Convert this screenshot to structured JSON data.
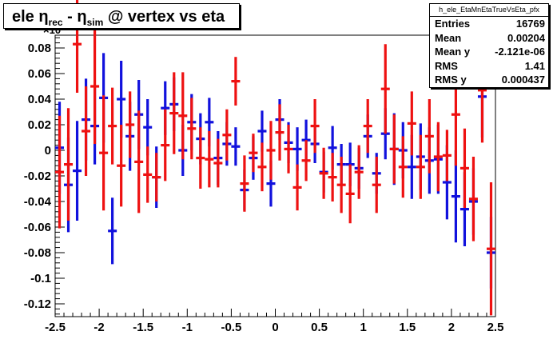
{
  "title": {
    "main_prefix": "ele ",
    "eta1": "η",
    "sub1": "rec",
    "dash": " - ",
    "eta2": "η",
    "sub2": "sim",
    "suffix": " @ vertex vs eta"
  },
  "stats": {
    "name": "h_ele_EtaMnEtaTrueVsEta_pfx",
    "rows": [
      {
        "label": "Entries",
        "value": "16769"
      },
      {
        "label": "Mean",
        "value": "0.00204"
      },
      {
        "label": "Mean y",
        "value": "-2.121e-06"
      },
      {
        "label": "RMS",
        "value": "1.41"
      },
      {
        "label": "RMS y",
        "value": "0.000437"
      }
    ]
  },
  "y_exponent_label": "×10",
  "chart_data": {
    "type": "scatter",
    "xlim": [
      -2.5,
      2.5
    ],
    "ylim": [
      -0.13,
      0.09
    ],
    "y_multiplier_label": "×10",
    "x_ticks": [
      "-2.5",
      "-2",
      "-1.5",
      "-1",
      "-0.5",
      "0",
      "0.5",
      "1",
      "1.5",
      "2",
      "2.5"
    ],
    "x_tick_values": [
      -2.5,
      -2,
      -1.5,
      -1,
      -0.5,
      0,
      0.5,
      1,
      1.5,
      2,
      2.5
    ],
    "y_ticks": [
      "0.08",
      "0.06",
      "0.04",
      "0.02",
      "0",
      "-0.02",
      "-0.04",
      "-0.06",
      "-0.08",
      "-0.1",
      "-0.12"
    ],
    "y_tick_values": [
      0.08,
      0.06,
      0.04,
      0.02,
      0,
      -0.02,
      -0.04,
      -0.06,
      -0.08,
      -0.1,
      -0.12
    ],
    "grid": false,
    "series": [
      {
        "color": "#1111dd",
        "points": [
          {
            "x": -2.45,
            "y": 0.002,
            "err": 0.036
          },
          {
            "x": -2.35,
            "y": -0.027,
            "err": 0.037
          },
          {
            "x": -2.25,
            "y": -0.016,
            "err": 0.039
          },
          {
            "x": -2.15,
            "y": 0.024,
            "err": 0.032
          },
          {
            "x": -2.05,
            "y": 0.019,
            "err": 0.03
          },
          {
            "x": -1.95,
            "y": 0.041,
            "err": 0.035
          },
          {
            "x": -1.85,
            "y": -0.063,
            "err": 0.026
          },
          {
            "x": -1.75,
            "y": 0.04,
            "err": 0.03
          },
          {
            "x": -1.65,
            "y": 0.011,
            "err": 0.027
          },
          {
            "x": -1.55,
            "y": 0.028,
            "err": 0.027
          },
          {
            "x": -1.45,
            "y": 0.018,
            "err": 0.022
          },
          {
            "x": -1.35,
            "y": -0.021,
            "err": 0.024
          },
          {
            "x": -1.25,
            "y": 0.033,
            "err": 0.021
          },
          {
            "x": -1.15,
            "y": 0.036,
            "err": 0.021
          },
          {
            "x": -1.05,
            "y": 0.0,
            "err": 0.02
          },
          {
            "x": -0.95,
            "y": 0.022,
            "err": 0.022
          },
          {
            "x": -0.85,
            "y": 0.009,
            "err": 0.02
          },
          {
            "x": -0.75,
            "y": 0.022,
            "err": 0.019
          },
          {
            "x": -0.65,
            "y": -0.006,
            "err": 0.021
          },
          {
            "x": -0.55,
            "y": 0.005,
            "err": 0.017
          },
          {
            "x": -0.45,
            "y": 0.003,
            "err": 0.015
          },
          {
            "x": -0.35,
            "y": -0.031,
            "err": 0.016
          },
          {
            "x": -0.25,
            "y": -0.006,
            "err": 0.017
          },
          {
            "x": -0.15,
            "y": 0.015,
            "err": 0.016
          },
          {
            "x": -0.05,
            "y": -0.026,
            "err": 0.018
          },
          {
            "x": 0.05,
            "y": 0.024,
            "err": 0.016
          },
          {
            "x": 0.15,
            "y": 0.006,
            "err": 0.016
          },
          {
            "x": 0.25,
            "y": 0.001,
            "err": 0.017
          },
          {
            "x": 0.35,
            "y": 0.008,
            "err": 0.016
          },
          {
            "x": 0.45,
            "y": 0.005,
            "err": 0.015
          },
          {
            "x": 0.55,
            "y": -0.017,
            "err": 0.016
          },
          {
            "x": 0.65,
            "y": 0.002,
            "err": 0.017
          },
          {
            "x": 0.75,
            "y": -0.011,
            "err": 0.016
          },
          {
            "x": 0.85,
            "y": -0.011,
            "err": 0.017
          },
          {
            "x": 0.95,
            "y": -0.014,
            "err": 0.016
          },
          {
            "x": 1.05,
            "y": 0.011,
            "err": 0.017
          },
          {
            "x": 1.15,
            "y": -0.018,
            "err": 0.016
          },
          {
            "x": 1.25,
            "y": 0.013,
            "err": 0.02
          },
          {
            "x": 1.35,
            "y": 0.001,
            "err": 0.028
          },
          {
            "x": 1.45,
            "y": 0.0,
            "err": 0.022
          },
          {
            "x": 1.55,
            "y": -0.013,
            "err": 0.025
          },
          {
            "x": 1.65,
            "y": -0.005,
            "err": 0.026
          },
          {
            "x": 1.75,
            "y": -0.008,
            "err": 0.026
          },
          {
            "x": 1.85,
            "y": -0.007,
            "err": 0.027
          },
          {
            "x": 1.95,
            "y": -0.025,
            "err": 0.029
          },
          {
            "x": 2.05,
            "y": -0.036,
            "err": 0.036
          },
          {
            "x": 2.15,
            "y": -0.046,
            "err": 0.029
          },
          {
            "x": 2.25,
            "y": -0.04,
            "err": 0.026
          },
          {
            "x": 2.35,
            "y": 0.042,
            "err": 0.032
          },
          {
            "x": 2.45,
            "y": -0.08,
            "err": 0.028
          }
        ]
      },
      {
        "color": "#ee1111",
        "points": [
          {
            "x": -2.45,
            "y": -0.017,
            "err": 0.044
          },
          {
            "x": -2.35,
            "y": -0.011,
            "err": 0.044
          },
          {
            "x": -2.25,
            "y": 0.083,
            "err": 0.038
          },
          {
            "x": -2.15,
            "y": 0.015,
            "err": 0.035
          },
          {
            "x": -2.05,
            "y": 0.05,
            "err": 0.045
          },
          {
            "x": -1.95,
            "y": -0.002,
            "err": 0.045
          },
          {
            "x": -1.85,
            "y": 0.019,
            "err": 0.03
          },
          {
            "x": -1.75,
            "y": -0.012,
            "err": 0.032
          },
          {
            "x": -1.65,
            "y": 0.02,
            "err": 0.026
          },
          {
            "x": -1.55,
            "y": -0.009,
            "err": 0.04
          },
          {
            "x": -1.45,
            "y": -0.019,
            "err": 0.022
          },
          {
            "x": -1.35,
            "y": -0.021,
            "err": 0.019
          },
          {
            "x": -1.25,
            "y": 0.004,
            "err": 0.028
          },
          {
            "x": -1.15,
            "y": 0.029,
            "err": 0.032
          },
          {
            "x": -1.05,
            "y": 0.027,
            "err": 0.034
          },
          {
            "x": -0.95,
            "y": 0.017,
            "err": 0.024
          },
          {
            "x": -0.85,
            "y": -0.006,
            "err": 0.024
          },
          {
            "x": -0.75,
            "y": -0.007,
            "err": 0.022
          },
          {
            "x": -0.65,
            "y": -0.01,
            "err": 0.019
          },
          {
            "x": -0.55,
            "y": 0.012,
            "err": 0.02
          },
          {
            "x": -0.45,
            "y": 0.054,
            "err": 0.019
          },
          {
            "x": -0.35,
            "y": -0.026,
            "err": 0.022
          },
          {
            "x": -0.25,
            "y": -0.002,
            "err": 0.015
          },
          {
            "x": -0.15,
            "y": -0.013,
            "err": 0.019
          },
          {
            "x": -0.05,
            "y": 0.0,
            "err": 0.023
          },
          {
            "x": 0.05,
            "y": 0.014,
            "err": 0.022
          },
          {
            "x": 0.15,
            "y": 0.001,
            "err": 0.019
          },
          {
            "x": 0.25,
            "y": -0.029,
            "err": 0.018
          },
          {
            "x": 0.35,
            "y": -0.008,
            "err": 0.016
          },
          {
            "x": 0.45,
            "y": 0.019,
            "err": 0.021
          },
          {
            "x": 0.55,
            "y": -0.018,
            "err": 0.02
          },
          {
            "x": 0.65,
            "y": -0.021,
            "err": 0.019
          },
          {
            "x": 0.75,
            "y": -0.027,
            "err": 0.022
          },
          {
            "x": 0.85,
            "y": -0.034,
            "err": 0.023
          },
          {
            "x": 0.95,
            "y": -0.017,
            "err": 0.021
          },
          {
            "x": 1.05,
            "y": 0.019,
            "err": 0.021
          },
          {
            "x": 1.15,
            "y": -0.027,
            "err": 0.022
          },
          {
            "x": 1.25,
            "y": 0.048,
            "err": 0.035
          },
          {
            "x": 1.35,
            "y": 0.001,
            "err": 0.027
          },
          {
            "x": 1.45,
            "y": -0.013,
            "err": 0.024
          },
          {
            "x": 1.55,
            "y": 0.021,
            "err": 0.025
          },
          {
            "x": 1.65,
            "y": -0.013,
            "err": 0.025
          },
          {
            "x": 1.75,
            "y": 0.011,
            "err": 0.029
          },
          {
            "x": 1.85,
            "y": -0.005,
            "err": 0.027
          },
          {
            "x": 1.95,
            "y": -0.004,
            "err": 0.02
          },
          {
            "x": 2.05,
            "y": 0.028,
            "err": 0.04
          },
          {
            "x": 2.15,
            "y": -0.014,
            "err": 0.031
          },
          {
            "x": 2.25,
            "y": -0.038,
            "err": 0.033
          },
          {
            "x": 2.35,
            "y": 0.047,
            "err": 0.041
          },
          {
            "x": 2.45,
            "y": -0.077,
            "err": 0.052
          }
        ]
      }
    ]
  }
}
